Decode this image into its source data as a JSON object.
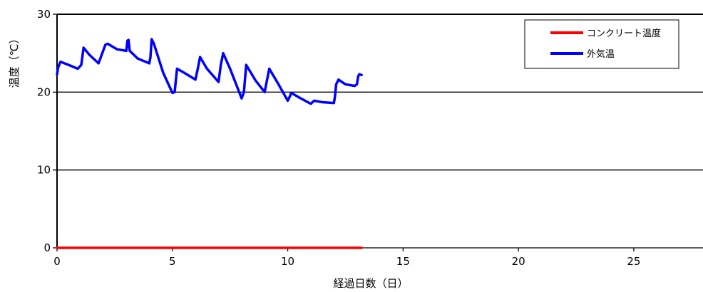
{
  "chart_data": {
    "type": "line",
    "xlabel": "経過日数（日）",
    "ylabel": "温度（℃）",
    "xlim": [
      0,
      28
    ],
    "ylim": [
      0,
      30
    ],
    "xticks": [
      "0",
      "5",
      "10",
      "15",
      "20",
      "25"
    ],
    "yticks": [
      "0",
      "10",
      "20",
      "30"
    ],
    "grid": "horizontal",
    "legend": "top-right",
    "series": [
      {
        "name": "コンクリート温度",
        "color": "#ff0000",
        "x": [
          0,
          13.2
        ],
        "y": [
          0,
          0
        ]
      },
      {
        "name": "外気温",
        "color": "#0000ff",
        "x": [
          0.0,
          0.05,
          0.15,
          0.5,
          0.9,
          1.05,
          1.15,
          1.4,
          1.8,
          2.1,
          2.2,
          2.6,
          3.0,
          3.05,
          3.1,
          3.15,
          3.5,
          4.0,
          4.05,
          4.1,
          4.2,
          4.6,
          5.0,
          5.1,
          5.15,
          5.2,
          5.5,
          6.0,
          6.1,
          6.2,
          6.5,
          7.0,
          7.1,
          7.2,
          7.5,
          8.0,
          8.1,
          8.2,
          8.6,
          9.0,
          9.1,
          9.2,
          9.6,
          10.0,
          10.1,
          10.15,
          10.5,
          11.0,
          11.1,
          11.15,
          11.5,
          12.0,
          12.05,
          12.1,
          12.2,
          12.5,
          12.9,
          13.0,
          13.05,
          13.1,
          13.2
        ],
        "y": [
          22.3,
          23.2,
          23.9,
          23.5,
          23.0,
          23.5,
          25.7,
          24.8,
          23.7,
          26.1,
          26.2,
          25.5,
          25.3,
          26.6,
          26.7,
          25.3,
          24.3,
          23.7,
          24.5,
          26.8,
          26.2,
          22.5,
          19.9,
          20.0,
          21.5,
          23.0,
          22.5,
          21.6,
          23.0,
          24.5,
          23.0,
          21.3,
          23.5,
          25.0,
          23.0,
          19.2,
          20.0,
          23.5,
          21.5,
          20.0,
          21.5,
          23.0,
          21.0,
          18.9,
          19.5,
          19.9,
          19.3,
          18.5,
          18.8,
          18.9,
          18.7,
          18.6,
          19.5,
          21.0,
          21.6,
          21.0,
          20.8,
          21.0,
          22.0,
          22.3,
          22.2
        ]
      }
    ]
  }
}
